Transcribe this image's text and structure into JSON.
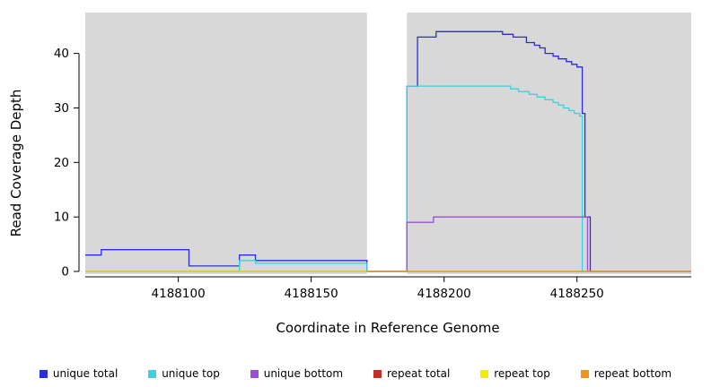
{
  "chart_data": {
    "type": "line",
    "title": "",
    "xlabel": "Coordinate in Reference Genome",
    "ylabel": "Read Coverage Depth",
    "xlim": [
      4188065,
      4188293
    ],
    "ylim": [
      0,
      47.5
    ],
    "x_ticks": [
      4188100,
      4188150,
      4188200,
      4188250
    ],
    "y_ticks": [
      0,
      10,
      20,
      30,
      40
    ],
    "grid": false,
    "legend_position": "bottom",
    "plot_background": "#ffffff",
    "background_regions": [
      {
        "x0": 4188065,
        "x1": 4188171,
        "color": "#d8d8d8"
      },
      {
        "x0": 4188186,
        "x1": 4188293,
        "color": "#d8d8d8"
      }
    ],
    "series": [
      {
        "name": "unique total",
        "color": "#2b2bdf",
        "points": [
          [
            4188065,
            3
          ],
          [
            4188071,
            4
          ],
          [
            4188104,
            1
          ],
          [
            4188123,
            3
          ],
          [
            4188129,
            2
          ],
          [
            4188171,
            0
          ],
          [
            4188186,
            34
          ],
          [
            4188190,
            43
          ],
          [
            4188197,
            44
          ],
          [
            4188222,
            43.5
          ],
          [
            4188226,
            43
          ],
          [
            4188231,
            42
          ],
          [
            4188234,
            41.5
          ],
          [
            4188236,
            41
          ],
          [
            4188238,
            40
          ],
          [
            4188241,
            39.5
          ],
          [
            4188243,
            39
          ],
          [
            4188246,
            38.5
          ],
          [
            4188248,
            38
          ],
          [
            4188250,
            37.5
          ],
          [
            4188252,
            29
          ],
          [
            4188253,
            10
          ],
          [
            4188255,
            0
          ]
        ]
      },
      {
        "name": "unique top",
        "color": "#3ecfe0",
        "points": [
          [
            4188065,
            0
          ],
          [
            4188123,
            2
          ],
          [
            4188129,
            1.5
          ],
          [
            4188171,
            0
          ],
          [
            4188186,
            34
          ],
          [
            4188225,
            33.5
          ],
          [
            4188228,
            33
          ],
          [
            4188232,
            32.5
          ],
          [
            4188235,
            32
          ],
          [
            4188238,
            31.5
          ],
          [
            4188241,
            31
          ],
          [
            4188243,
            30.5
          ],
          [
            4188245,
            30
          ],
          [
            4188247,
            29.5
          ],
          [
            4188249,
            29
          ],
          [
            4188251,
            28.5
          ],
          [
            4188252,
            0
          ]
        ]
      },
      {
        "name": "unique bottom",
        "color": "#9a4fd6",
        "points": [
          [
            4188065,
            0
          ],
          [
            4188186,
            9
          ],
          [
            4188196,
            10
          ],
          [
            4188254,
            0
          ]
        ]
      },
      {
        "name": "repeat total",
        "color": "#c03028",
        "points": [
          [
            4188065,
            0
          ]
        ]
      },
      {
        "name": "repeat top",
        "color": "#f2e813",
        "points": [
          [
            4188065,
            0
          ]
        ]
      },
      {
        "name": "repeat bottom",
        "color": "#f0941e",
        "points": [
          [
            4188171,
            0
          ]
        ]
      }
    ]
  }
}
